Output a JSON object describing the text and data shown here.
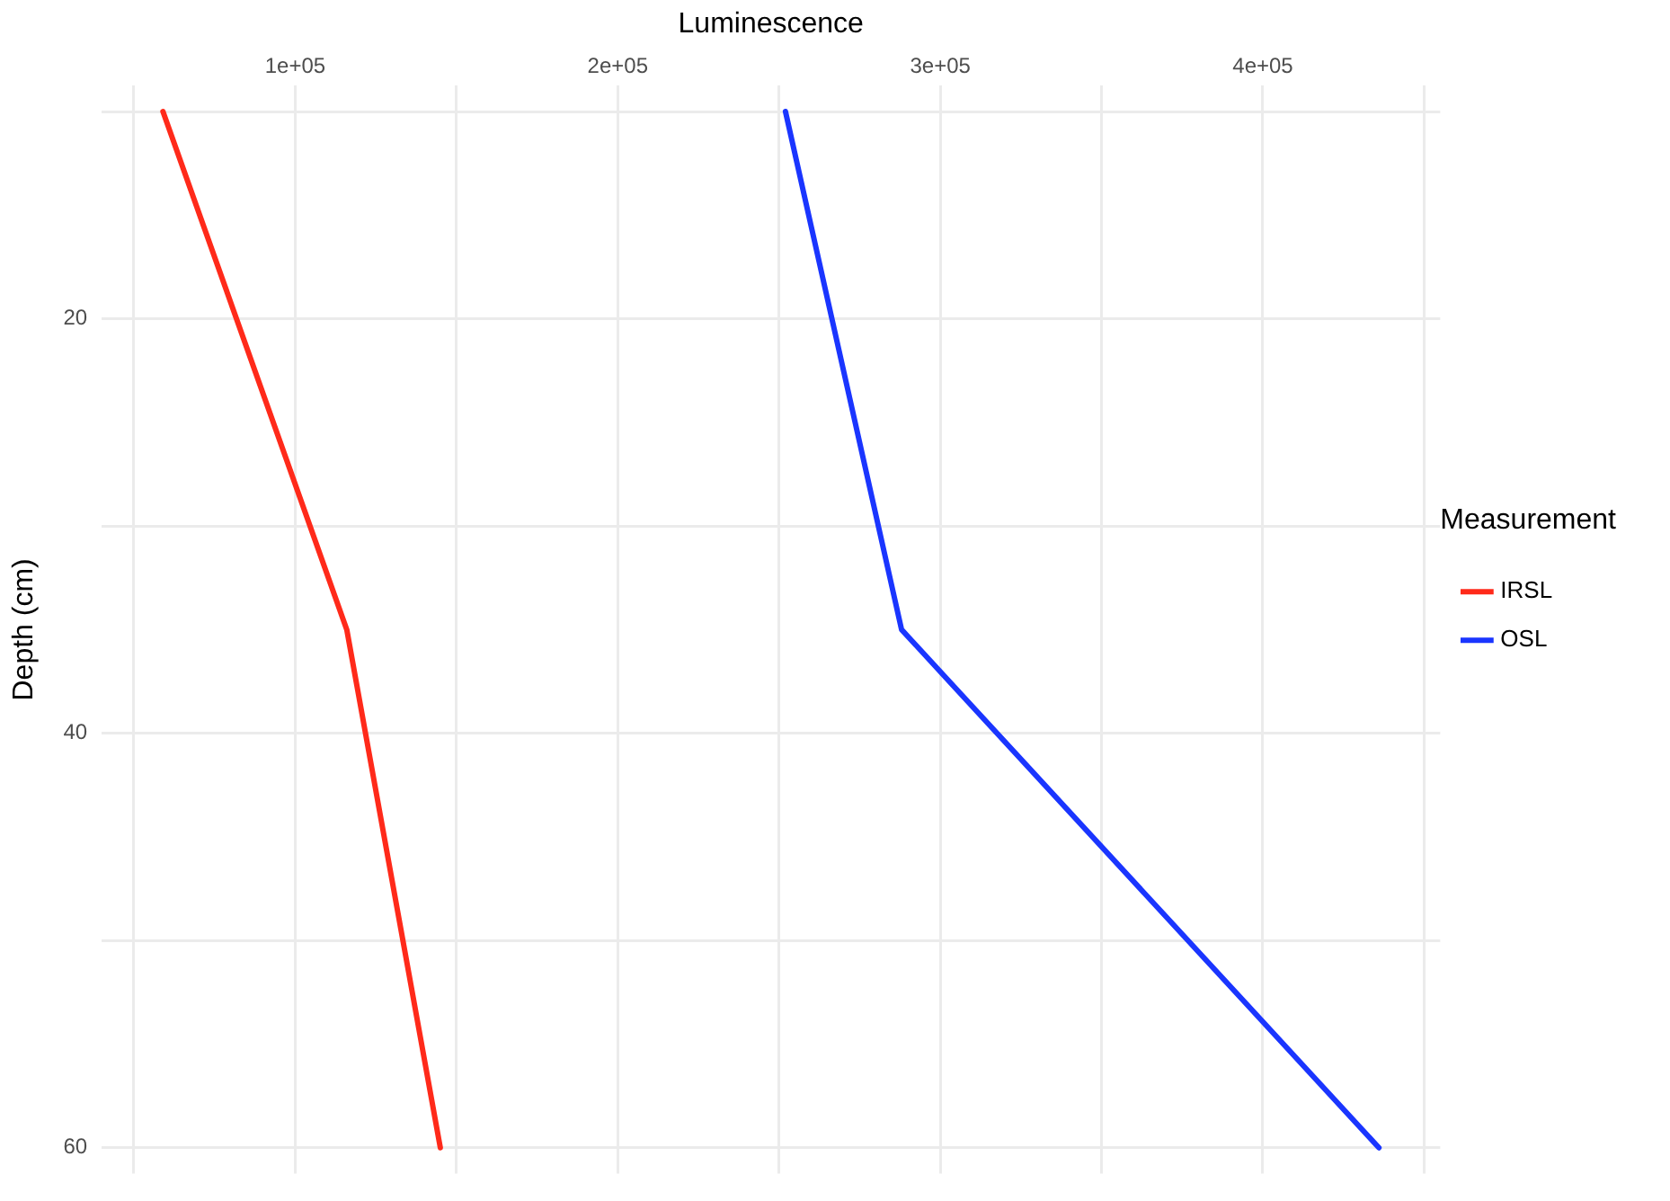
{
  "chart_data": {
    "type": "line",
    "xlabel": "Luminescence",
    "ylabel": "Depth (cm)",
    "legend_title": "Measurement",
    "legend": "right",
    "grid": true,
    "xlim": [
      40000,
      455000
    ],
    "xticks": [
      {
        "value": 50000,
        "label": null
      },
      {
        "value": 100000,
        "label": "1e+05"
      },
      {
        "value": 150000,
        "label": null
      },
      {
        "value": 200000,
        "label": "2e+05"
      },
      {
        "value": 250000,
        "label": null
      },
      {
        "value": 300000,
        "label": "3e+05"
      },
      {
        "value": 350000,
        "label": null
      },
      {
        "value": 400000,
        "label": "4e+05"
      },
      {
        "value": 450000,
        "label": null
      }
    ],
    "ylim": [
      61.25,
      8.75
    ],
    "yticks": [
      {
        "value": 10,
        "label": null
      },
      20,
      {
        "value": 30,
        "label": null
      },
      40,
      {
        "value": 50,
        "label": null
      },
      60
    ],
    "series": [
      {
        "name": "IRSL",
        "color": "#ff2a1a",
        "x": [
          59000,
          116000,
          145000
        ],
        "values": [
          10,
          35,
          60
        ]
      },
      {
        "name": "OSL",
        "color": "#1a35ff",
        "x": [
          252000,
          288000,
          436000
        ],
        "values": [
          10,
          35,
          60
        ]
      }
    ]
  }
}
